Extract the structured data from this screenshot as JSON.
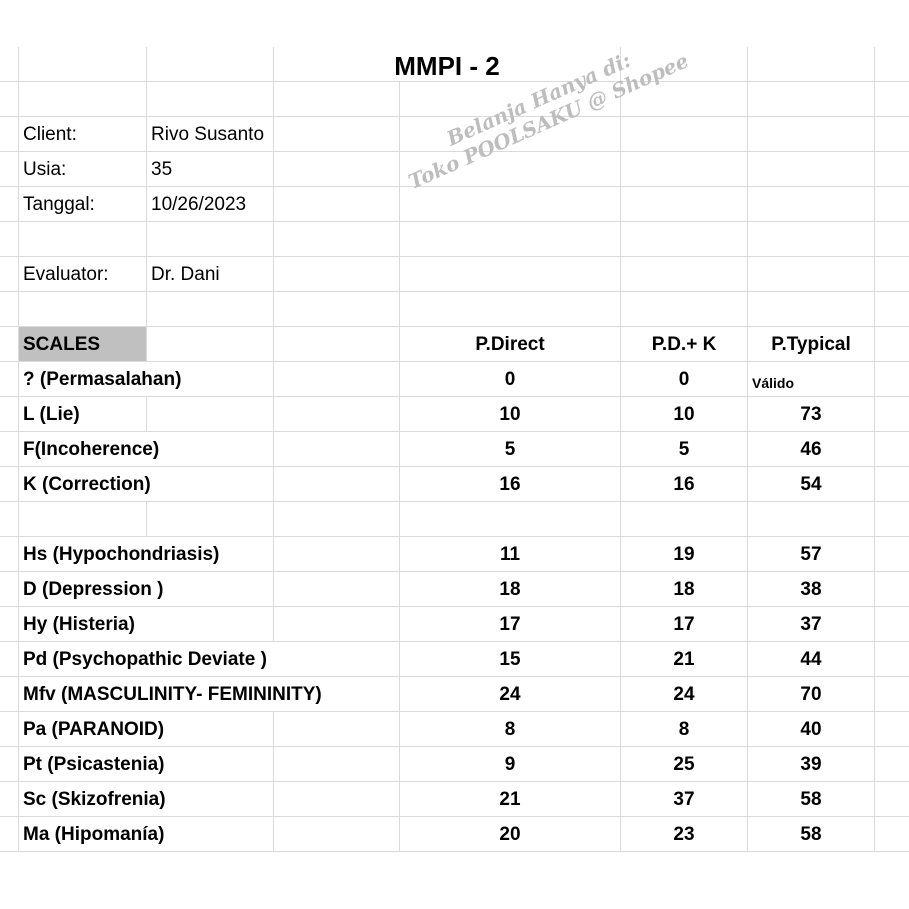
{
  "title": "MMPI - 2",
  "info": {
    "client_label": "Client:",
    "client_value": "Rivo Susanto",
    "age_label": "Usia:",
    "age_value": "35",
    "date_label": "Tanggal:",
    "date_value": "10/26/2023",
    "evaluator_label": "Evaluator:",
    "evaluator_value": "Dr. Dani"
  },
  "headers": {
    "scales": "SCALES",
    "p_direct": "P.Direct",
    "pd_k": "P.D.+ K",
    "p_typical": "P.Typical"
  },
  "validity_scales": [
    {
      "name": "? (Permasalahan)",
      "p_direct": "0",
      "pd_k": "0",
      "p_typical": "Válido"
    },
    {
      "name": "L (Lie)",
      "p_direct": "10",
      "pd_k": "10",
      "p_typical": "73"
    },
    {
      "name": "F(Incoherence)",
      "p_direct": "5",
      "pd_k": "5",
      "p_typical": "46"
    },
    {
      "name": "K (Correction)",
      "p_direct": "16",
      "pd_k": "16",
      "p_typical": "54"
    }
  ],
  "clinical_scales": [
    {
      "name": "Hs (Hypochondriasis)",
      "p_direct": "11",
      "pd_k": "19",
      "p_typical": "57"
    },
    {
      "name": "D (Depression )",
      "p_direct": "18",
      "pd_k": "18",
      "p_typical": "38"
    },
    {
      "name": "Hy (Histeria)",
      "p_direct": "17",
      "pd_k": "17",
      "p_typical": "37"
    },
    {
      "name": "Pd (Psychopathic Deviate )",
      "p_direct": "15",
      "pd_k": "21",
      "p_typical": "44"
    },
    {
      "name": "Mfv (MASCULINITY- FEMININITY)",
      "p_direct": "24",
      "pd_k": "24",
      "p_typical": "70"
    },
    {
      "name": "Pa (PARANOID)",
      "p_direct": "8",
      "pd_k": "8",
      "p_typical": "40"
    },
    {
      "name": "Pt (Psicastenia)",
      "p_direct": "9",
      "pd_k": "25",
      "p_typical": "39"
    },
    {
      "name": "Sc (Skizofrenia)",
      "p_direct": "21",
      "pd_k": "37",
      "p_typical": "58"
    },
    {
      "name": "Ma (Hipomanía)",
      "p_direct": "20",
      "pd_k": "23",
      "p_typical": "58"
    }
  ],
  "watermark": {
    "line1": "Belanja Hanya di:",
    "line2": "Toko POOLSAKU @ Shopee"
  },
  "colors": {
    "header_fill": "#c0c0c0",
    "gridline": "#dadada",
    "watermark": "#bdbdbd"
  }
}
